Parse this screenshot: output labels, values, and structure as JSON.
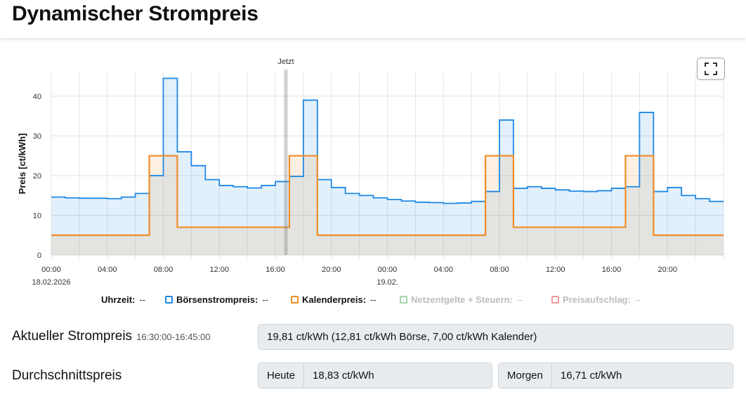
{
  "header": {
    "title": "Dynamischer Strompreis"
  },
  "chart": {
    "now_label": "Jetzt",
    "y_title": "Preis [ct/kWh]",
    "y_ticks": [
      0,
      10,
      20,
      30,
      40
    ],
    "x_ticks": [
      "00:00",
      "04:00",
      "08:00",
      "12:00",
      "16:00",
      "20:00",
      "00:00",
      "04:00",
      "08:00",
      "12:00",
      "16:00",
      "20:00"
    ],
    "date_labels": [
      "18.02.2026",
      "19.02."
    ],
    "colors": {
      "boerse": "#1e88e5",
      "kalender": "#f08c28",
      "netz": "#a5d6a7",
      "aufschlag": "#ef9a9a"
    },
    "fullscreen_icon": "fullscreen-icon"
  },
  "chart_data": {
    "type": "area",
    "xlabel": "Uhrzeit",
    "ylabel": "Preis [ct/kWh]",
    "ylim": [
      0,
      46
    ],
    "x_start": "18.02.2026 00:00",
    "x_end": "19.02.2026 24:00",
    "step": "1h",
    "now": "18.02.2026 16:45",
    "grid": true,
    "series": [
      {
        "name": "Börsenstrompreis",
        "values": [
          14.6,
          14.4,
          14.3,
          14.3,
          14.2,
          14.6,
          15.5,
          20.0,
          44.5,
          26.0,
          22.5,
          19.0,
          17.5,
          17.2,
          16.9,
          17.5,
          18.5,
          19.8,
          39.0,
          19.0,
          17.0,
          15.5,
          15.0,
          14.4,
          14.0,
          13.6,
          13.3,
          13.2,
          13.0,
          13.1,
          13.5,
          16.0,
          34.0,
          16.8,
          17.2,
          16.8,
          16.4,
          16.1,
          16.0,
          16.2,
          16.8,
          17.2,
          35.9,
          16.0,
          17.0,
          15.0,
          14.2,
          13.5
        ]
      },
      {
        "name": "Kalenderpreis",
        "values": [
          5,
          5,
          5,
          5,
          5,
          5,
          5,
          25,
          25,
          7,
          7,
          7,
          7,
          7,
          7,
          7,
          7,
          25,
          25,
          5,
          5,
          5,
          5,
          5,
          5,
          5,
          5,
          5,
          5,
          5,
          5,
          25,
          25,
          7,
          7,
          7,
          7,
          7,
          7,
          7,
          7,
          25,
          25,
          5,
          5,
          5,
          5,
          5
        ]
      }
    ]
  },
  "legend": {
    "items": [
      {
        "label": "Uhrzeit:",
        "value": "--"
      },
      {
        "label": "Börsenstrompreis:",
        "value": "--"
      },
      {
        "label": "Kalenderpreis:",
        "value": "--"
      },
      {
        "label": "Netzentgelte + Steuern:",
        "value": "--"
      },
      {
        "label": "Preisaufschlag:",
        "value": "--"
      }
    ]
  },
  "current": {
    "label": "Aktueller Strompreis",
    "time": "16:30:00-16:45:00",
    "value": "19,81 ct/kWh (12,81 ct/kWh Börse, 7,00 ct/kWh Kalender)"
  },
  "average": {
    "label": "Durchschnittspreis",
    "today_label": "Heute",
    "today_value": "18,83 ct/kWh",
    "tomorrow_label": "Morgen",
    "tomorrow_value": "16,71 ct/kWh"
  }
}
